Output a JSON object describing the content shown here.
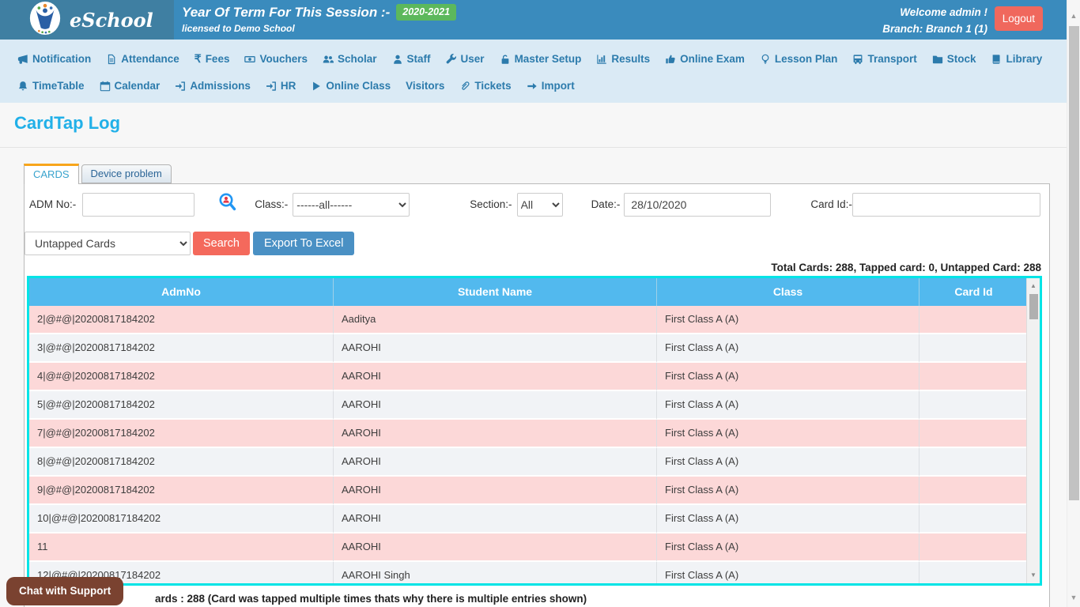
{
  "header": {
    "brand": "eSchool",
    "session_label": "Year Of Term For This Session :-",
    "session_value": "2020-2021",
    "licensed": "licensed to Demo School",
    "welcome": "Welcome admin !",
    "branch": "Branch: Branch 1 (1)",
    "logout_label": "Logout",
    "colors": {
      "header_left": "#3f7fa2",
      "header_main": "#3a8bbd",
      "badge_green": "#5cb85c",
      "logout_red": "#f0685d"
    }
  },
  "nav": {
    "row1": [
      {
        "icon": "megaphone-icon",
        "label": "Notification"
      },
      {
        "icon": "file-icon",
        "label": "Attendance"
      },
      {
        "icon": "rupee-icon",
        "label": "Fees"
      },
      {
        "icon": "money-icon",
        "label": "Vouchers"
      },
      {
        "icon": "users-icon",
        "label": "Scholar"
      },
      {
        "icon": "user-icon",
        "label": "Staff"
      },
      {
        "icon": "wrench-icon",
        "label": "User"
      },
      {
        "icon": "unlock-icon",
        "label": "Master Setup"
      },
      {
        "icon": "chart-bar-icon",
        "label": "Results"
      },
      {
        "icon": "thumbs-up-icon",
        "label": "Online Exam"
      },
      {
        "icon": "lightbulb-icon",
        "label": "Lesson Plan"
      },
      {
        "icon": "bus-icon",
        "label": "Transport"
      },
      {
        "icon": "folder-icon",
        "label": "Stock"
      },
      {
        "icon": "book-icon",
        "label": "Library"
      }
    ],
    "row2": [
      {
        "icon": "bell-icon",
        "label": "TimeTable"
      },
      {
        "icon": "calendar-icon",
        "label": "Calendar"
      },
      {
        "icon": "sign-in-icon",
        "label": "Admissions"
      },
      {
        "icon": "sign-in-icon",
        "label": "HR"
      },
      {
        "icon": "play-icon",
        "label": "Online Class"
      },
      {
        "icon": "",
        "label": "Visitors"
      },
      {
        "icon": "paperclip-icon",
        "label": "Tickets"
      },
      {
        "icon": "arrow-right-icon",
        "label": "Import"
      }
    ]
  },
  "page": {
    "title": "CardTap Log"
  },
  "tabs": [
    {
      "label": "CARDS",
      "active": true
    },
    {
      "label": "Device problem",
      "active": false
    }
  ],
  "filters": {
    "adm_no_label": "ADM No:-",
    "adm_no_value": "",
    "class_label": "Class:-",
    "class_value": "------all------",
    "section_label": "Section:-",
    "section_value": "All",
    "date_label": "Date:-",
    "date_value": "28/10/2020",
    "card_id_label": "Card Id:-",
    "card_id_value": "",
    "card_filter_value": "Untapped Cards",
    "search_label": "Search",
    "export_label": "Export To Excel"
  },
  "summary": {
    "text": "Total Cards: 288, Tapped card: 0, Untapped Card: 288"
  },
  "table": {
    "columns": [
      "AdmNo",
      "Student Name",
      "Class",
      "Card Id"
    ],
    "rows": [
      {
        "adm": "2|@#@|20200817184202",
        "name": "Aaditya",
        "cls": "First Class A (A)",
        "card": ""
      },
      {
        "adm": "3|@#@|20200817184202",
        "name": "AAROHI",
        "cls": "First Class A (A)",
        "card": ""
      },
      {
        "adm": "4|@#@|20200817184202",
        "name": "AAROHI",
        "cls": "First Class A (A)",
        "card": ""
      },
      {
        "adm": "5|@#@|20200817184202",
        "name": "AAROHI",
        "cls": "First Class A (A)",
        "card": ""
      },
      {
        "adm": "7|@#@|20200817184202",
        "name": "AAROHI",
        "cls": "First Class A (A)",
        "card": ""
      },
      {
        "adm": "8|@#@|20200817184202",
        "name": "AAROHI",
        "cls": "First Class A (A)",
        "card": ""
      },
      {
        "adm": "9|@#@|20200817184202",
        "name": "AAROHI",
        "cls": "First Class A (A)",
        "card": ""
      },
      {
        "adm": "10|@#@|20200817184202",
        "name": "AAROHI",
        "cls": "First Class A (A)",
        "card": ""
      },
      {
        "adm": "11",
        "name": "AAROHI",
        "cls": "First Class A (A)",
        "card": ""
      },
      {
        "adm": "12|@#@|20200817184202",
        "name": "AAROHI Singh",
        "cls": "First Class A (A)",
        "card": ""
      }
    ],
    "colors": {
      "header_blue": "#52b9ee",
      "row_pink": "#fcd8d8",
      "row_gray": "#f1f3f6",
      "border_cyan": "#00e4e6"
    }
  },
  "footer": {
    "chat_label": "Chat with Support",
    "note": "ards : 288 (Card was tapped multiple times thats why there is multiple entries shown)"
  }
}
